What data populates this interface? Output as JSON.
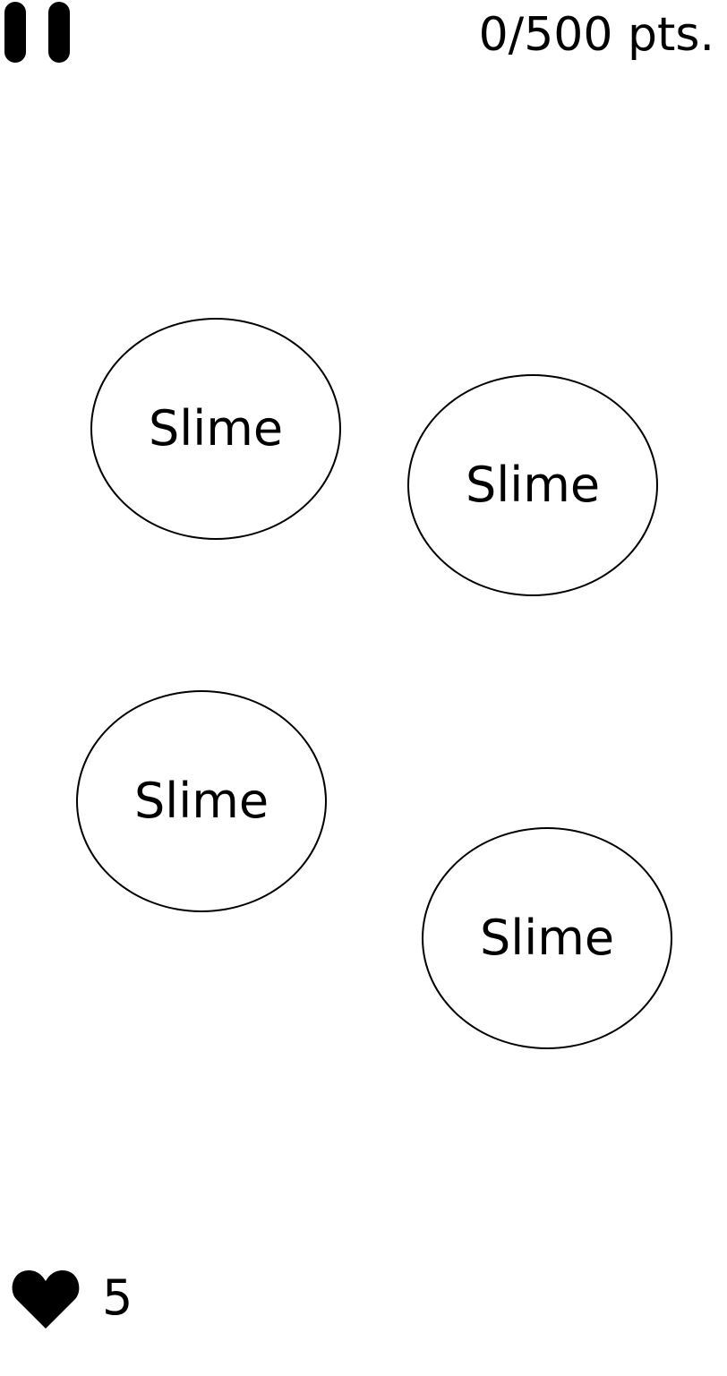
{
  "hud": {
    "pause_icon": "pause-icon",
    "score_text": "0/500 pts.",
    "lives_icon": "heart-icon",
    "lives_count": "5"
  },
  "slimes": [
    {
      "label": "Slime"
    },
    {
      "label": "Slime"
    },
    {
      "label": "Slime"
    },
    {
      "label": "Slime"
    }
  ],
  "colors": {
    "background": "#ffffff",
    "foreground": "#000000"
  }
}
